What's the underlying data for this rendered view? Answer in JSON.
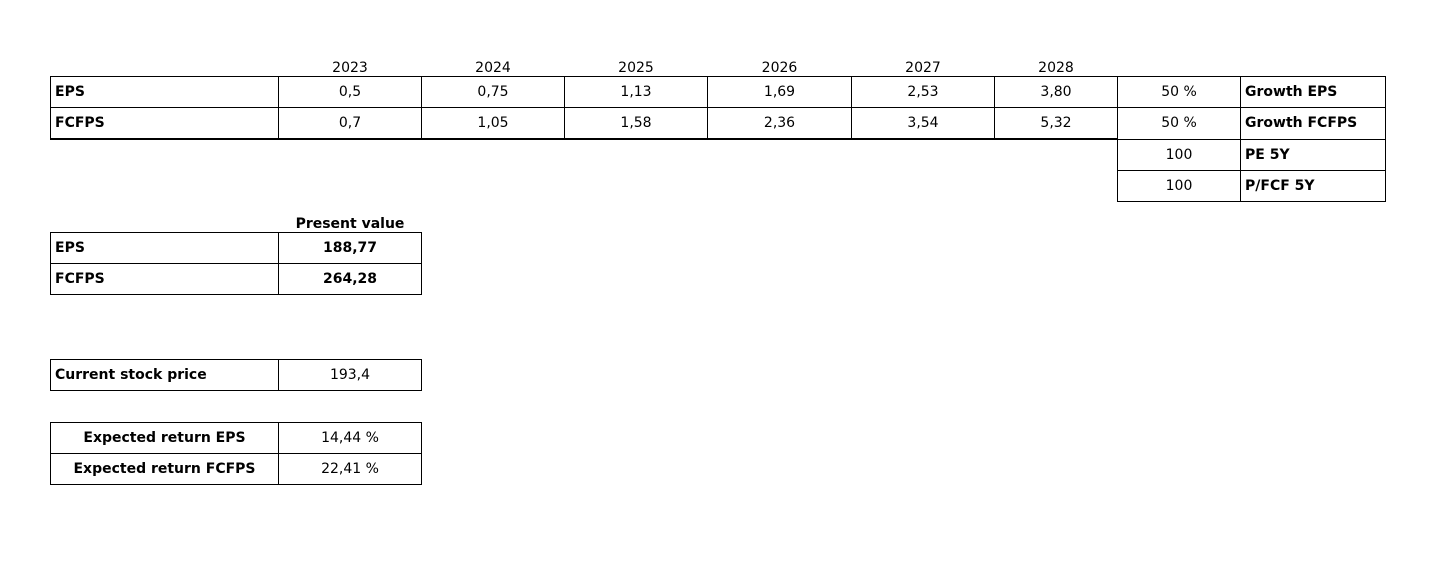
{
  "main_table": {
    "years": [
      "2023",
      "2024",
      "2025",
      "2026",
      "2027",
      "2028"
    ],
    "rows": [
      {
        "label": "EPS",
        "values": [
          "0,5",
          "0,75",
          "1,13",
          "1,69",
          "2,53",
          "3,80"
        ],
        "growth": "50 %",
        "growth_label": "Growth EPS"
      },
      {
        "label": "FCFPS",
        "values": [
          "0,7",
          "1,05",
          "1,58",
          "2,36",
          "3,54",
          "5,32"
        ],
        "growth": "50 %",
        "growth_label": "Growth FCFPS"
      }
    ]
  },
  "multiples": [
    {
      "value": "100",
      "label": "PE 5Y"
    },
    {
      "value": "100",
      "label": "P/FCF 5Y"
    }
  ],
  "present_value": {
    "header": "Present value",
    "rows": [
      {
        "label": "EPS",
        "value": "188,77"
      },
      {
        "label": "FCFPS",
        "value": "264,28"
      }
    ]
  },
  "current_stock_price": {
    "label": "Current stock price",
    "value": "193,4"
  },
  "expected_return": [
    {
      "label": "Expected return EPS",
      "value": "14,44 %"
    },
    {
      "label": "Expected return FCFPS",
      "value": "22,41 %"
    }
  ]
}
